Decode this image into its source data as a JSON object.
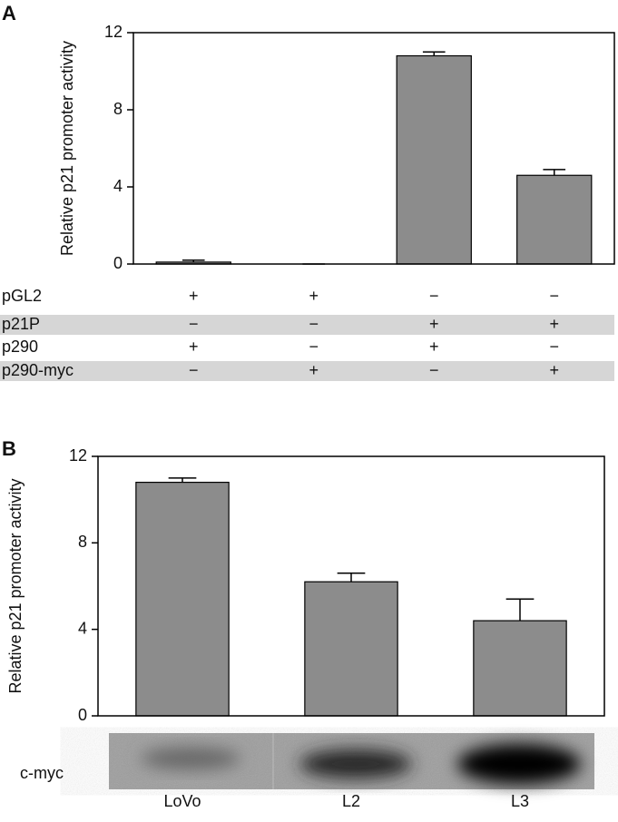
{
  "chart_data": [
    {
      "type": "bar",
      "panel": "A",
      "ylabel": "Relative p21 promoter activity",
      "values": [
        0.1,
        0,
        10.8,
        4.6
      ],
      "errors": [
        0.1,
        0,
        0.2,
        0.3
      ],
      "color": "#8c8c8c",
      "ylim": [
        0,
        12
      ],
      "yticks": [
        0,
        4,
        8,
        12
      ],
      "conditions": [
        {
          "label": "pGL2",
          "signs": [
            "+",
            "+",
            "−",
            "−"
          ]
        },
        {
          "label": "p21P",
          "signs": [
            "−",
            "−",
            "+",
            "+"
          ]
        },
        {
          "label": "p290",
          "signs": [
            "+",
            "−",
            "+",
            "−"
          ]
        },
        {
          "label": "p290-myc",
          "signs": [
            "−",
            "+",
            "−",
            "+"
          ]
        }
      ]
    },
    {
      "type": "bar",
      "panel": "B",
      "ylabel": "Relative p21 promoter activity",
      "categories": [
        "LoVo",
        "L2",
        "L3"
      ],
      "values": [
        10.8,
        6.2,
        4.4
      ],
      "errors": [
        0.2,
        0.4,
        1.0
      ],
      "color": "#8c8c8c",
      "ylim": [
        0,
        12
      ],
      "yticks": [
        0,
        4,
        8,
        12
      ],
      "blot_label": "c-myc"
    }
  ]
}
